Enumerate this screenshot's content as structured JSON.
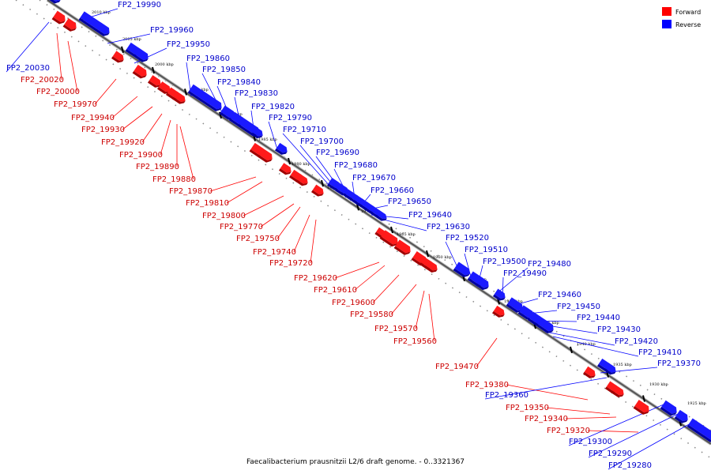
{
  "caption": "Faecalibacterium prausnitzii L2/6 draft genome. - 0..3321367",
  "legend": {
    "forward_label": "Forward",
    "reverse_label": "Reverse",
    "forward_color": "#ff0000",
    "reverse_color": "#0000ff"
  },
  "colors": {
    "forward_text": "#cc0000",
    "reverse_text": "#0000cc",
    "backbone": "#555555"
  },
  "ticks": [
    "2010 kbp",
    "2005 kbp",
    "2000 kbp",
    "1995 kbp",
    "1990 kbp",
    "1985 kbp",
    "1980 kbp",
    "1975 kbp",
    "1970 kbp",
    "1965 kbp",
    "1960 kbp",
    "1955 kbp",
    "1950 kbp",
    "1945 kbp",
    "1940 kbp",
    "1935 kbp",
    "1930 kbp",
    "1925 kbp"
  ],
  "forward_labels": [
    "FP2_20020",
    "FP2_20000",
    "FP2_19970",
    "FP2_19940",
    "FP2_19930",
    "FP2_19920",
    "FP2_19900",
    "FP2_19890",
    "FP2_19880",
    "FP2_19870",
    "FP2_19810",
    "FP2_19800",
    "FP2_19770",
    "FP2_19750",
    "FP2_19740",
    "FP2_19720",
    "FP2_19620",
    "FP2_19610",
    "FP2_19600",
    "FP2_19580",
    "FP2_19570",
    "FP2_19560",
    "FP2_19470",
    "FP2_19380",
    "FP2_19350",
    "FP2_19340",
    "FP2_19320"
  ],
  "reverse_labels": [
    "FP2_19990",
    "FP2_19960",
    "FP2_19950",
    "FP2_20030",
    "FP2_19860",
    "FP2_19850",
    "FP2_19840",
    "FP2_19830",
    "FP2_19820",
    "FP2_19790",
    "FP2_19710",
    "FP2_19700",
    "FP2_19690",
    "FP2_19680",
    "FP2_19670",
    "FP2_19660",
    "FP2_19650",
    "FP2_19640",
    "FP2_19630",
    "FP2_19520",
    "FP2_19510",
    "FP2_19500",
    "FP2_19480",
    "FP2_19490",
    "FP2_19460",
    "FP2_19450",
    "FP2_19440",
    "FP2_19430",
    "FP2_19420",
    "FP2_19410",
    "FP2_19370",
    "FP2_19360",
    "FP2_19300",
    "FP2_19290",
    "FP2_19280"
  ]
}
